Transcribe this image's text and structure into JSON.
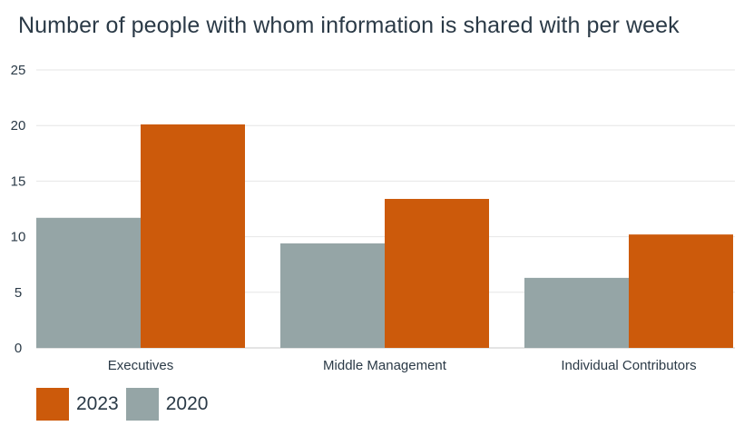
{
  "chart_data": {
    "type": "bar",
    "title": "Number of people with whom information is shared with per week",
    "xlabel": "",
    "ylabel": "",
    "categories": [
      "Executives",
      "Middle Management",
      "Individual Contributors"
    ],
    "series": [
      {
        "name": "2020",
        "values": [
          11.7,
          9.4,
          6.3
        ],
        "color": "#95a5a6"
      },
      {
        "name": "2023",
        "values": [
          20.1,
          13.4,
          10.2
        ],
        "color": "#cc5a0b"
      }
    ],
    "ylim": [
      0,
      25
    ],
    "yticks": [
      "0",
      "5",
      "10",
      "15",
      "20",
      "25"
    ],
    "grid": true,
    "legend": {
      "position": "bottom-left",
      "items": [
        {
          "label": "2023",
          "color": "#cc5a0b"
        },
        {
          "label": "2020",
          "color": "#95a5a6"
        }
      ]
    }
  }
}
